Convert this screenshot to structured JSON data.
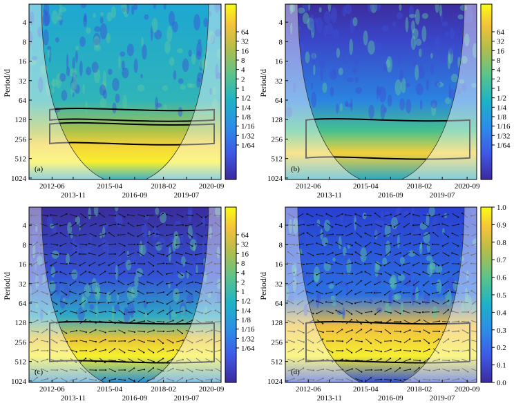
{
  "chart_data": [
    {
      "type": "heatmap",
      "panel": "(a)",
      "title": "",
      "xlabel": "",
      "ylabel": "Period/d",
      "x_ticks_upper": [
        "2012-06",
        "2015-04",
        "2018-02",
        "2020-09"
      ],
      "x_ticks_lower": [
        "2013-11",
        "2016-09",
        "2019-07"
      ],
      "y_ticks": [
        "4",
        "8",
        "16",
        "32",
        "64",
        "128",
        "256",
        "512",
        "1024"
      ],
      "colorbar_type": "log2",
      "colorbar_ticks": [
        "64",
        "32",
        "16",
        "8",
        "4",
        "2",
        "1",
        "1/2",
        "1/4",
        "1/8",
        "1/16",
        "1/32",
        "1/64"
      ],
      "significant_bands_period_d": [
        [
          90,
          130
        ],
        [
          150,
          300
        ]
      ],
      "arrows": false
    },
    {
      "type": "heatmap",
      "panel": "(b)",
      "title": "",
      "xlabel": "",
      "ylabel": "Period/d",
      "x_ticks_upper": [
        "2012-06",
        "2015-04",
        "2018-02",
        "2020-09"
      ],
      "x_ticks_lower": [
        "2013-11",
        "2016-09",
        "2019-07"
      ],
      "y_ticks": [
        "4",
        "8",
        "16",
        "32",
        "64",
        "128",
        "256",
        "512",
        "1024"
      ],
      "colorbar_type": "log2",
      "colorbar_ticks": [
        "64",
        "32",
        "16",
        "8",
        "4",
        "2",
        "1",
        "1/2",
        "1/4",
        "1/8",
        "1/16",
        "1/32",
        "1/64"
      ],
      "significant_bands_period_d": [
        [
          130,
          500
        ]
      ],
      "arrows": false
    },
    {
      "type": "heatmap",
      "panel": "(c)",
      "title": "",
      "xlabel": "",
      "ylabel": "Period/d",
      "x_ticks_upper": [
        "2012-06",
        "2015-04",
        "2018-02",
        "2020-09"
      ],
      "x_ticks_lower": [
        "2013-11",
        "2016-09",
        "2019-07"
      ],
      "y_ticks": [
        "4",
        "8",
        "16",
        "32",
        "64",
        "128",
        "256",
        "512",
        "1024"
      ],
      "colorbar_type": "log2",
      "colorbar_ticks": [
        "64",
        "32",
        "16",
        "8",
        "4",
        "2",
        "1",
        "1/2",
        "1/4",
        "1/8",
        "1/16",
        "1/32",
        "1/64"
      ],
      "significant_bands_period_d": [
        [
          130,
          512
        ]
      ],
      "arrows": true
    },
    {
      "type": "heatmap",
      "panel": "(d)",
      "title": "",
      "xlabel": "",
      "ylabel": "Period/d",
      "x_ticks_upper": [
        "2012-06",
        "2015-04",
        "2018-02",
        "2020-09"
      ],
      "x_ticks_lower": [
        "2013-11",
        "2016-09",
        "2019-07"
      ],
      "y_ticks": [
        "4",
        "8",
        "16",
        "32",
        "64",
        "128",
        "256",
        "512",
        "1024"
      ],
      "colorbar_type": "linear",
      "colorbar_ticks": [
        "1.0",
        "0.9",
        "0.8",
        "0.7",
        "0.6",
        "0.5",
        "0.4",
        "0.3",
        "0.2",
        "0.1",
        "0.0"
      ],
      "significant_bands_period_d": [
        [
          130,
          512
        ]
      ],
      "arrows": true
    }
  ]
}
